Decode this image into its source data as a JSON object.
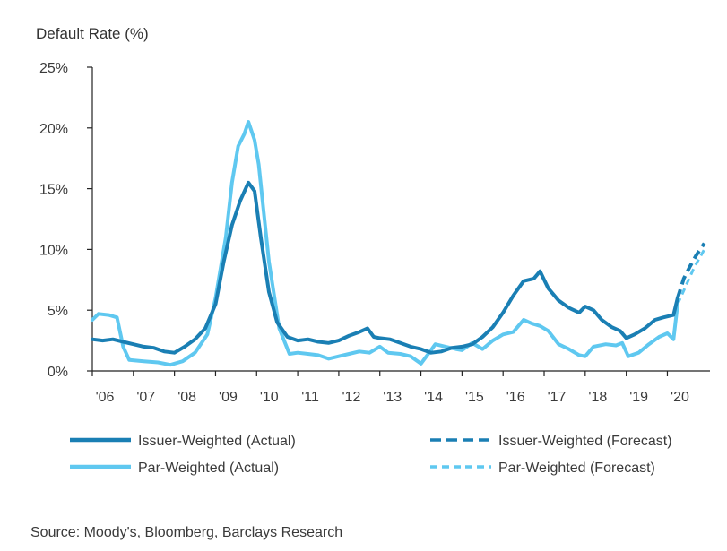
{
  "chart_data": {
    "type": "line",
    "ylabel": "Default Rate (%)",
    "xlabel": "",
    "ylim": [
      0,
      25
    ],
    "xlim": [
      2006.0,
      2020.95
    ],
    "y_ticks": [
      {
        "value": 0,
        "label": "0%"
      },
      {
        "value": 5,
        "label": "5%"
      },
      {
        "value": 10,
        "label": "10%"
      },
      {
        "value": 15,
        "label": "15%"
      },
      {
        "value": 20,
        "label": "20%"
      },
      {
        "value": 25,
        "label": "25%"
      }
    ],
    "x_ticks": [
      {
        "value": 2006,
        "label": "'06"
      },
      {
        "value": 2007,
        "label": "'07"
      },
      {
        "value": 2008,
        "label": "'08"
      },
      {
        "value": 2009,
        "label": "'09"
      },
      {
        "value": 2010,
        "label": "'10"
      },
      {
        "value": 2011,
        "label": "'11"
      },
      {
        "value": 2012,
        "label": "'12"
      },
      {
        "value": 2013,
        "label": "'13"
      },
      {
        "value": 2014,
        "label": "'14"
      },
      {
        "value": 2015,
        "label": "'15"
      },
      {
        "value": 2016,
        "label": "'16"
      },
      {
        "value": 2017,
        "label": "'17"
      },
      {
        "value": 2018,
        "label": "'18"
      },
      {
        "value": 2019,
        "label": "'19"
      },
      {
        "value": 2020,
        "label": "'20"
      }
    ],
    "grid": false,
    "legend_position": "bottom",
    "series": [
      {
        "name": "Issuer-Weighted (Actual)",
        "color": "#1a7fb4",
        "style": "solid",
        "points": [
          [
            2006.0,
            2.6
          ],
          [
            2006.25,
            2.5
          ],
          [
            2006.5,
            2.6
          ],
          [
            2006.75,
            2.4
          ],
          [
            2007.0,
            2.2
          ],
          [
            2007.25,
            2.0
          ],
          [
            2007.5,
            1.9
          ],
          [
            2007.75,
            1.6
          ],
          [
            2008.0,
            1.5
          ],
          [
            2008.25,
            2.0
          ],
          [
            2008.5,
            2.6
          ],
          [
            2008.75,
            3.5
          ],
          [
            2009.0,
            5.5
          ],
          [
            2009.2,
            9.0
          ],
          [
            2009.4,
            12.0
          ],
          [
            2009.6,
            14.0
          ],
          [
            2009.8,
            15.5
          ],
          [
            2009.95,
            14.8
          ],
          [
            2010.1,
            11.0
          ],
          [
            2010.3,
            6.5
          ],
          [
            2010.5,
            4.0
          ],
          [
            2010.75,
            2.8
          ],
          [
            2011.0,
            2.5
          ],
          [
            2011.25,
            2.6
          ],
          [
            2011.5,
            2.4
          ],
          [
            2011.75,
            2.3
          ],
          [
            2012.0,
            2.5
          ],
          [
            2012.25,
            2.9
          ],
          [
            2012.5,
            3.2
          ],
          [
            2012.7,
            3.5
          ],
          [
            2012.85,
            2.8
          ],
          [
            2013.0,
            2.7
          ],
          [
            2013.25,
            2.6
          ],
          [
            2013.5,
            2.3
          ],
          [
            2013.75,
            2.0
          ],
          [
            2014.0,
            1.8
          ],
          [
            2014.25,
            1.5
          ],
          [
            2014.5,
            1.6
          ],
          [
            2014.75,
            1.9
          ],
          [
            2015.0,
            2.0
          ],
          [
            2015.25,
            2.2
          ],
          [
            2015.5,
            2.8
          ],
          [
            2015.75,
            3.6
          ],
          [
            2016.0,
            4.8
          ],
          [
            2016.25,
            6.2
          ],
          [
            2016.5,
            7.4
          ],
          [
            2016.75,
            7.6
          ],
          [
            2016.9,
            8.2
          ],
          [
            2017.1,
            6.8
          ],
          [
            2017.35,
            5.8
          ],
          [
            2017.6,
            5.2
          ],
          [
            2017.85,
            4.8
          ],
          [
            2018.0,
            5.3
          ],
          [
            2018.2,
            5.0
          ],
          [
            2018.4,
            4.2
          ],
          [
            2018.65,
            3.6
          ],
          [
            2018.85,
            3.3
          ],
          [
            2019.0,
            2.7
          ],
          [
            2019.2,
            3.0
          ],
          [
            2019.45,
            3.5
          ],
          [
            2019.7,
            4.2
          ],
          [
            2019.9,
            4.4
          ],
          [
            2020.15,
            4.6
          ],
          [
            2020.25,
            6.0
          ]
        ]
      },
      {
        "name": "Issuer-Weighted (Forecast)",
        "color": "#1a7fb4",
        "style": "dashed",
        "points": [
          [
            2020.25,
            6.0
          ],
          [
            2020.4,
            7.6
          ],
          [
            2020.55,
            8.6
          ],
          [
            2020.7,
            9.5
          ],
          [
            2020.9,
            10.5
          ]
        ]
      },
      {
        "name": "Par-Weighted (Actual)",
        "color": "#5fc8f0",
        "style": "solid",
        "points": [
          [
            2006.0,
            4.2
          ],
          [
            2006.15,
            4.7
          ],
          [
            2006.4,
            4.6
          ],
          [
            2006.6,
            4.4
          ],
          [
            2006.75,
            2.0
          ],
          [
            2006.9,
            0.9
          ],
          [
            2007.25,
            0.8
          ],
          [
            2007.6,
            0.7
          ],
          [
            2007.9,
            0.5
          ],
          [
            2008.2,
            0.8
          ],
          [
            2008.5,
            1.5
          ],
          [
            2008.8,
            3.0
          ],
          [
            2009.0,
            6.0
          ],
          [
            2009.25,
            11.0
          ],
          [
            2009.4,
            15.5
          ],
          [
            2009.55,
            18.5
          ],
          [
            2009.7,
            19.5
          ],
          [
            2009.8,
            20.5
          ],
          [
            2009.95,
            19.0
          ],
          [
            2010.05,
            17.0
          ],
          [
            2010.3,
            9.0
          ],
          [
            2010.55,
            3.5
          ],
          [
            2010.8,
            1.4
          ],
          [
            2011.0,
            1.5
          ],
          [
            2011.25,
            1.4
          ],
          [
            2011.5,
            1.3
          ],
          [
            2011.75,
            1.0
          ],
          [
            2012.0,
            1.2
          ],
          [
            2012.25,
            1.4
          ],
          [
            2012.5,
            1.6
          ],
          [
            2012.75,
            1.5
          ],
          [
            2013.0,
            2.0
          ],
          [
            2013.2,
            1.5
          ],
          [
            2013.5,
            1.4
          ],
          [
            2013.75,
            1.2
          ],
          [
            2014.0,
            0.6
          ],
          [
            2014.2,
            1.5
          ],
          [
            2014.35,
            2.2
          ],
          [
            2014.6,
            2.0
          ],
          [
            2014.85,
            1.8
          ],
          [
            2015.0,
            1.7
          ],
          [
            2015.25,
            2.3
          ],
          [
            2015.5,
            1.8
          ],
          [
            2015.75,
            2.5
          ],
          [
            2016.0,
            3.0
          ],
          [
            2016.25,
            3.2
          ],
          [
            2016.5,
            4.2
          ],
          [
            2016.7,
            3.9
          ],
          [
            2016.9,
            3.7
          ],
          [
            2017.1,
            3.3
          ],
          [
            2017.35,
            2.2
          ],
          [
            2017.6,
            1.8
          ],
          [
            2017.85,
            1.3
          ],
          [
            2018.0,
            1.2
          ],
          [
            2018.2,
            2.0
          ],
          [
            2018.5,
            2.2
          ],
          [
            2018.75,
            2.1
          ],
          [
            2018.9,
            2.3
          ],
          [
            2019.05,
            1.2
          ],
          [
            2019.3,
            1.5
          ],
          [
            2019.55,
            2.2
          ],
          [
            2019.8,
            2.8
          ],
          [
            2020.0,
            3.1
          ],
          [
            2020.15,
            2.6
          ],
          [
            2020.25,
            5.5
          ]
        ]
      },
      {
        "name": "Par-Weighted (Forecast)",
        "color": "#5fc8f0",
        "style": "dashed",
        "points": [
          [
            2020.25,
            5.5
          ],
          [
            2020.45,
            7.0
          ],
          [
            2020.65,
            8.5
          ],
          [
            2020.9,
            10.0
          ]
        ]
      }
    ]
  },
  "source": "Source: Moody's, Bloomberg, Barclays Research",
  "legend": [
    {
      "label": "Issuer-Weighted (Actual)",
      "color": "#1a7fb4",
      "style": "solid"
    },
    {
      "label": "Issuer-Weighted (Forecast)",
      "color": "#1a7fb4",
      "style": "dashed"
    },
    {
      "label": "Par-Weighted (Actual)",
      "color": "#5fc8f0",
      "style": "solid"
    },
    {
      "label": "Par-Weighted (Forecast)",
      "color": "#5fc8f0",
      "style": "dashed"
    }
  ]
}
